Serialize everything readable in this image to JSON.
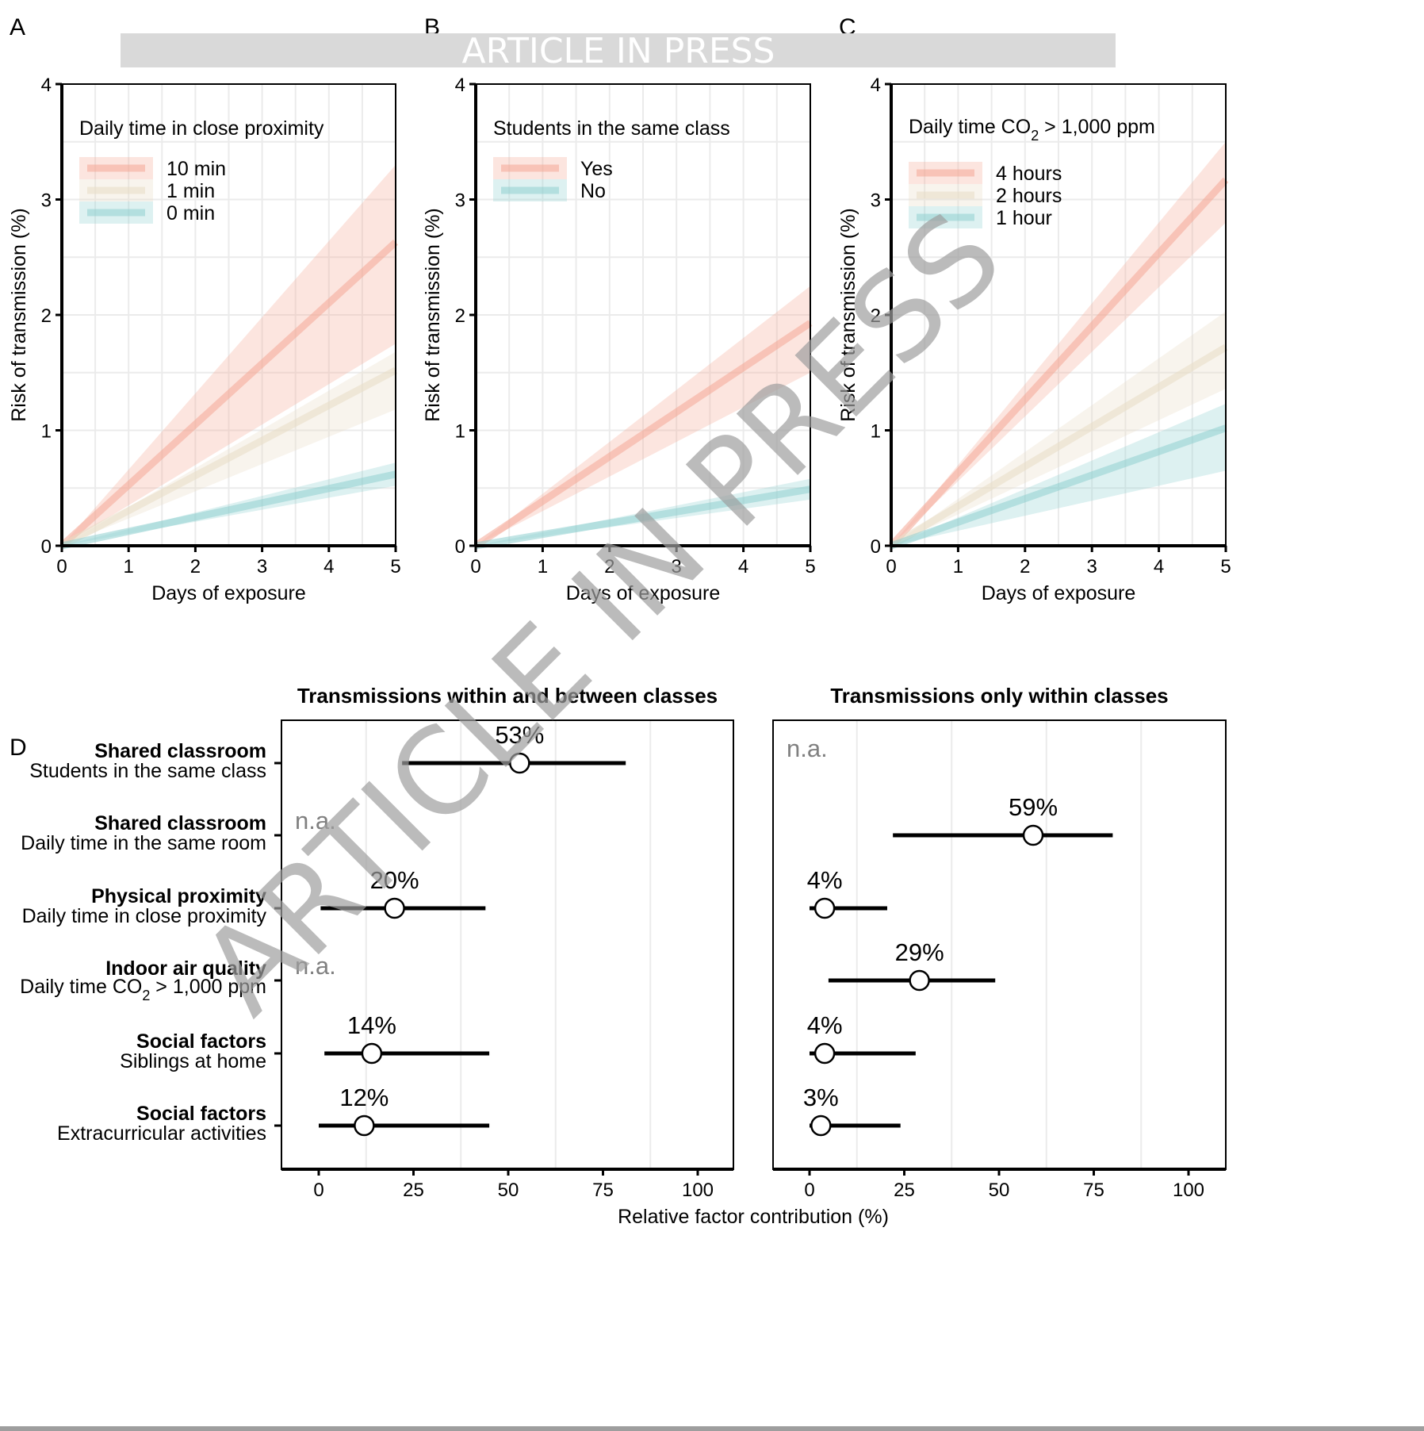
{
  "banner": {
    "text": "ARTICLE IN PRESS",
    "color": "#d9d9d9"
  },
  "watermark": {
    "text": "ARTICLE IN PRESS"
  },
  "colors": {
    "red": "#f4a896",
    "beige": "#e8dcc4",
    "teal": "#8fd0d0"
  },
  "chart_data": [
    {
      "panel": "A",
      "type": "area",
      "title": "",
      "xlabel": "Days of exposure",
      "ylabel": "Risk of transmission (%)",
      "xlim": [
        0,
        5
      ],
      "ylim": [
        0,
        4
      ],
      "xticks": [
        "0",
        "1",
        "2",
        "3",
        "4",
        "5"
      ],
      "yticks": [
        "0",
        "1",
        "2",
        "3",
        "4"
      ],
      "grid": true,
      "legend": {
        "title": "Daily time in close proximity",
        "placement": "top-left"
      },
      "x": [
        0,
        5
      ],
      "series": [
        {
          "name": "10 min",
          "color_key": "red",
          "values": [
            0,
            2.63
          ],
          "lower": [
            0,
            1.75
          ],
          "upper": [
            0,
            3.3
          ]
        },
        {
          "name": "1 min",
          "color_key": "beige",
          "values": [
            0,
            1.52
          ],
          "lower": [
            0,
            1.18
          ],
          "upper": [
            0,
            1.68
          ]
        },
        {
          "name": "0 min",
          "color_key": "teal",
          "values": [
            0,
            0.62
          ],
          "lower": [
            0,
            0.52
          ],
          "upper": [
            0,
            0.72
          ]
        }
      ]
    },
    {
      "panel": "B",
      "type": "area",
      "title": "",
      "xlabel": "Days of exposure",
      "ylabel": "Risk of transmission (%)",
      "xlim": [
        0,
        5
      ],
      "ylim": [
        0,
        4
      ],
      "xticks": [
        "0",
        "1",
        "2",
        "3",
        "4",
        "5"
      ],
      "yticks": [
        "0",
        "1",
        "2",
        "3",
        "4"
      ],
      "grid": true,
      "legend": {
        "title": "Students in the same class",
        "placement": "top-left"
      },
      "x": [
        0,
        5
      ],
      "series": [
        {
          "name": "Yes",
          "color_key": "red",
          "values": [
            0,
            1.93
          ],
          "lower": [
            0,
            1.5
          ],
          "upper": [
            0,
            2.25
          ]
        },
        {
          "name": "No",
          "color_key": "teal",
          "values": [
            0,
            0.49
          ],
          "lower": [
            0,
            0.4
          ],
          "upper": [
            0,
            0.58
          ]
        }
      ]
    },
    {
      "panel": "C",
      "type": "area",
      "title": "",
      "xlabel": "Days of exposure",
      "ylabel": "Risk of transmission (%)",
      "xlim": [
        0,
        5
      ],
      "ylim": [
        0,
        4
      ],
      "xticks": [
        "0",
        "1",
        "2",
        "3",
        "4",
        "5"
      ],
      "yticks": [
        "0",
        "1",
        "2",
        "3",
        "4"
      ],
      "grid": true,
      "legend": {
        "title_pre": "Daily time CO",
        "title_sub": "2",
        "title_post": " > 1,000  ppm",
        "placement": "top-left"
      },
      "x": [
        0,
        5
      ],
      "series": [
        {
          "name": "4 hours",
          "color_key": "red",
          "values": [
            0,
            3.17
          ],
          "lower": [
            0,
            2.8
          ],
          "upper": [
            0,
            3.5
          ]
        },
        {
          "name": "2 hours",
          "color_key": "beige",
          "values": [
            0,
            1.72
          ],
          "lower": [
            0,
            1.36
          ],
          "upper": [
            0,
            2.03
          ]
        },
        {
          "name": "1 hour",
          "color_key": "teal",
          "values": [
            0,
            1.02
          ],
          "lower": [
            0,
            0.65
          ],
          "upper": [
            0,
            1.23
          ]
        }
      ]
    },
    {
      "panel": "D",
      "type": "scatter",
      "xlabel": "Relative factor contribution (%)",
      "xlim": [
        -10,
        110
      ],
      "xticks": [
        "0",
        "25",
        "50",
        "75",
        "100"
      ],
      "grid": true,
      "categories": [
        {
          "group": "Shared classroom",
          "label": "Students  in the same class"
        },
        {
          "group": "Shared classroom",
          "label": "Daily time in the same room"
        },
        {
          "group": "Physical  proximity",
          "label": "Daily time in close proximity"
        },
        {
          "group": "Indoor air quality",
          "label_pre": "Daily time CO",
          "label_sub": "2",
          "label_post": " > 1,000  ppm"
        },
        {
          "group": "Social  factors",
          "label": "Siblings  at home"
        },
        {
          "group": "Social  factors",
          "label": "Extracurricular  activities"
        }
      ],
      "facets": [
        {
          "title": "Transmissions within and between classes",
          "points": [
            {
              "value": 53,
              "lower": 22,
              "upper": 81,
              "label": "53%"
            },
            {
              "na": true,
              "label": "n.a."
            },
            {
              "value": 20,
              "lower": 0.5,
              "upper": 44,
              "label": "20%"
            },
            {
              "na": true,
              "label": "n.a."
            },
            {
              "value": 14,
              "lower": 1.5,
              "upper": 45,
              "label": "14%"
            },
            {
              "value": 12,
              "lower": 0,
              "upper": 45,
              "label": "12%"
            }
          ]
        },
        {
          "title": "Transmissions only within classes",
          "points": [
            {
              "na": true,
              "label": "n.a."
            },
            {
              "value": 59,
              "lower": 22,
              "upper": 80,
              "label": "59%"
            },
            {
              "value": 4,
              "lower": 0,
              "upper": 20.5,
              "label": "4%"
            },
            {
              "value": 29,
              "lower": 5,
              "upper": 49,
              "label": "29%"
            },
            {
              "value": 4,
              "lower": 0,
              "upper": 28,
              "label": "4%"
            },
            {
              "value": 3,
              "lower": 0,
              "upper": 24,
              "label": "3%"
            }
          ]
        }
      ]
    }
  ]
}
